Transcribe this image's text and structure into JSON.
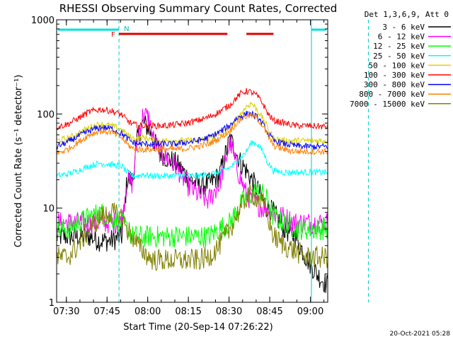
{
  "chart_data": {
    "type": "line",
    "title": "RHESSI Observing Summary Count Rates, Corrected",
    "xlabel": "Start Time (20-Sep-14 07:26:22)",
    "ylabel": "Corrected Count Rate (s⁻¹ detector⁻¹)",
    "yscale": "log",
    "ylim": [
      1,
      1000
    ],
    "xlim_minutes": [
      0,
      100
    ],
    "x_tick_labels": [
      "07:30",
      "07:45",
      "08:00",
      "08:15",
      "08:30",
      "08:45",
      "09:00"
    ],
    "y_tick_labels": [
      "1",
      "10",
      "100",
      "1000"
    ],
    "legend_header": "Det 1,3,6,9, Att 0",
    "legend_position": "right-outside",
    "timestamp": "20-Oct-2021 05:28",
    "flags": {
      "n_label": "N",
      "f_label": "F",
      "night_intervals_min": [
        [
          0,
          23
        ],
        [
          94,
          115
        ]
      ],
      "flare_intervals_min": [
        [
          23,
          63
        ],
        [
          70,
          80
        ]
      ]
    },
    "x_minutes": [
      0,
      4,
      8,
      12,
      16,
      20,
      24,
      26,
      28,
      30,
      32,
      34,
      36,
      38,
      40,
      44,
      48,
      52,
      56,
      60,
      64,
      66,
      68,
      70,
      72,
      74,
      76,
      78,
      80,
      84,
      88,
      92,
      96,
      100
    ],
    "series": [
      {
        "name": "3 - 6 keV",
        "color": "#000000",
        "values": [
          5,
          5,
          5,
          5,
          4.5,
          4.5,
          5,
          20,
          20,
          60,
          80,
          70,
          50,
          40,
          35,
          30,
          22,
          18,
          18,
          22,
          55,
          40,
          30,
          25,
          20,
          16,
          12,
          10,
          9,
          6,
          5,
          3,
          2,
          1.5
        ]
      },
      {
        "name": "6 - 12 keV",
        "color": "#ff00ff",
        "values": [
          7,
          7,
          7,
          7,
          7,
          7,
          7,
          20,
          18,
          60,
          100,
          90,
          50,
          40,
          35,
          28,
          18,
          14,
          12,
          18,
          50,
          30,
          20,
          14,
          12,
          11,
          10,
          10,
          9,
          8,
          7,
          7,
          7,
          7
        ]
      },
      {
        "name": "12 - 25 keV",
        "color": "#00ff00",
        "values": [
          6,
          6,
          7,
          8,
          9,
          8,
          7,
          6,
          5,
          5,
          5,
          5,
          5,
          5,
          5,
          5,
          5,
          5,
          5,
          6,
          7,
          9,
          11,
          13,
          14,
          15,
          14,
          12,
          8,
          7,
          6,
          6,
          6,
          6
        ]
      },
      {
        "name": "25 - 50 keV",
        "color": "#00ffff",
        "values": [
          22,
          23,
          25,
          28,
          30,
          29,
          28,
          24,
          22,
          22,
          23,
          22,
          22,
          22,
          22,
          22,
          22,
          22,
          23,
          24,
          27,
          30,
          35,
          40,
          50,
          48,
          40,
          30,
          25,
          24,
          24,
          24,
          24,
          24
        ]
      },
      {
        "name": "50 - 100 keV",
        "color": "#ddd000",
        "values": [
          52,
          55,
          62,
          72,
          78,
          75,
          68,
          60,
          55,
          55,
          56,
          55,
          52,
          52,
          52,
          52,
          52,
          52,
          55,
          60,
          70,
          85,
          100,
          120,
          130,
          110,
          90,
          70,
          55,
          52,
          52,
          52,
          52,
          52
        ]
      },
      {
        "name": "100 - 300 keV",
        "color": "#ff0000",
        "values": [
          72,
          78,
          90,
          105,
          112,
          108,
          98,
          85,
          78,
          75,
          75,
          75,
          75,
          75,
          75,
          77,
          80,
          85,
          92,
          105,
          125,
          145,
          165,
          175,
          170,
          155,
          130,
          100,
          85,
          80,
          75,
          75,
          74,
          73
        ]
      },
      {
        "name": "300 - 800 keV",
        "color": "#0000ff",
        "values": [
          45,
          50,
          58,
          66,
          72,
          70,
          62,
          55,
          50,
          48,
          48,
          48,
          48,
          48,
          48,
          48,
          50,
          52,
          56,
          64,
          76,
          88,
          95,
          100,
          100,
          92,
          78,
          62,
          52,
          48,
          46,
          45,
          45,
          45
        ]
      },
      {
        "name": "800 - 7000 keV",
        "color": "#ff8000",
        "values": [
          38,
          42,
          50,
          60,
          66,
          64,
          56,
          48,
          43,
          42,
          42,
          42,
          42,
          42,
          42,
          42,
          43,
          45,
          48,
          55,
          66,
          78,
          88,
          95,
          96,
          90,
          75,
          58,
          46,
          42,
          40,
          40,
          40,
          40
        ]
      },
      {
        "name": "7000 - 15000 keV",
        "color": "#808000",
        "values": [
          3,
          3,
          4,
          6,
          8,
          9,
          8,
          6,
          5,
          4,
          3.5,
          3,
          2.8,
          2.8,
          2.8,
          2.8,
          2.8,
          2.8,
          3,
          4,
          6,
          8,
          10,
          13,
          14,
          13,
          11,
          8,
          5,
          4,
          3.5,
          3,
          3,
          3
        ]
      }
    ]
  }
}
